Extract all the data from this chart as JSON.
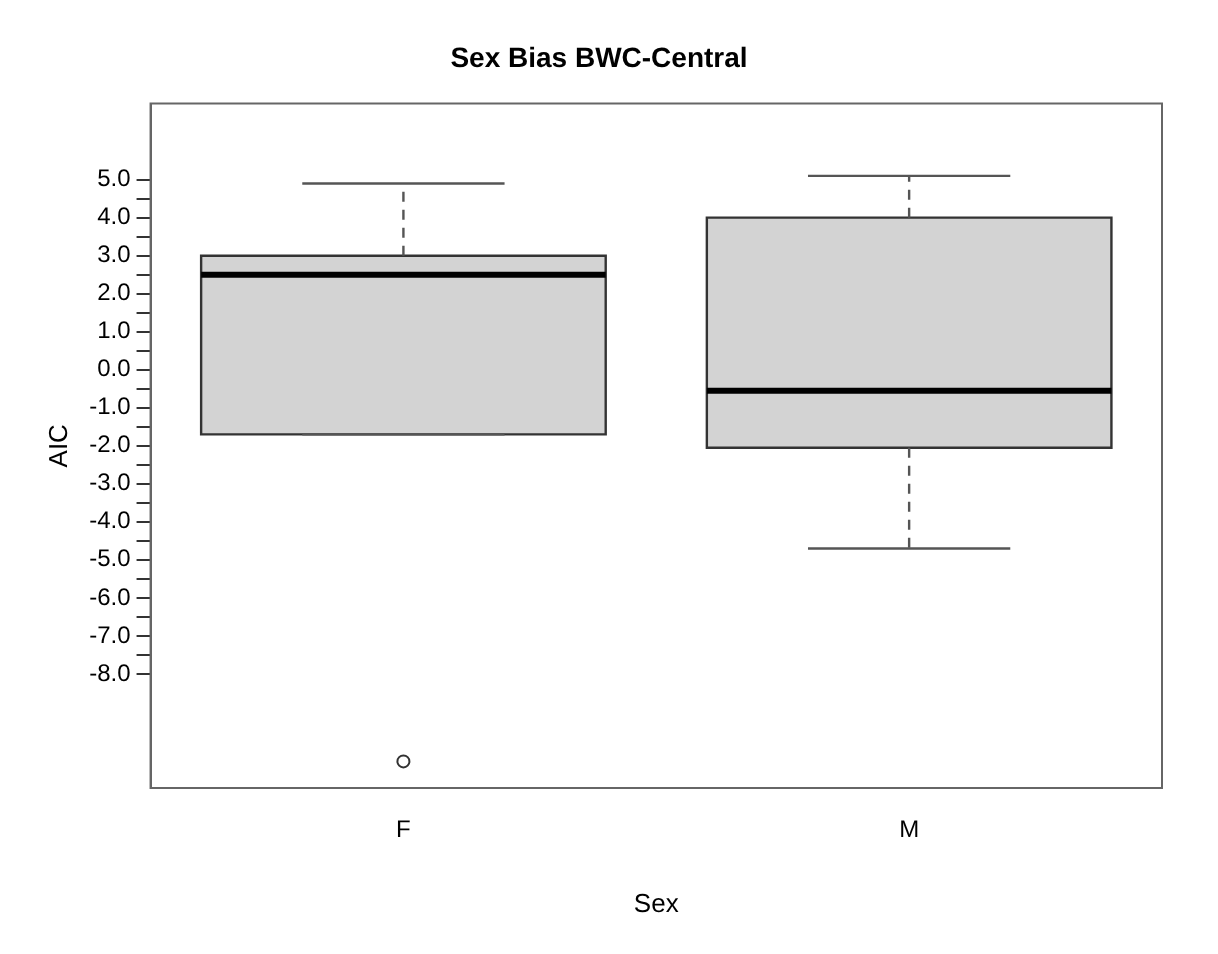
{
  "chart_data": {
    "type": "box",
    "title": "Sex Bias BWC-Central",
    "xlabel": "Sex",
    "ylabel": "AIC",
    "categories": [
      "F",
      "M"
    ],
    "boxes": [
      {
        "low": -1.7,
        "q1": -1.7,
        "median": 2.5,
        "q3": 3.0,
        "high": 4.9,
        "outliers": [
          -10.3
        ]
      },
      {
        "low": -4.7,
        "q1": -2.05,
        "median": -0.55,
        "q3": 4.0,
        "high": 5.1
      }
    ],
    "color": "#d3d3d3",
    "ylim": [
      -11,
      7
    ],
    "yticks": [
      {
        "value": 5,
        "label": "5.0"
      },
      {
        "value": 4.5,
        "label": null
      },
      {
        "value": 4,
        "label": "4.0"
      },
      {
        "value": 3.5,
        "label": null
      },
      {
        "value": 3,
        "label": "3.0"
      },
      {
        "value": 2.5,
        "label": null
      },
      {
        "value": 2,
        "label": "2.0"
      },
      {
        "value": 1.5,
        "label": null
      },
      {
        "value": 1,
        "label": "1.0"
      },
      {
        "value": 0.5,
        "label": null
      },
      {
        "value": 0,
        "label": "0.0"
      },
      {
        "value": -0.5,
        "label": null
      },
      {
        "value": -1,
        "label": "-1.0"
      },
      {
        "value": -1.5,
        "label": null
      },
      {
        "value": -2,
        "label": "-2.0"
      },
      {
        "value": -2.5,
        "label": null
      },
      {
        "value": -3,
        "label": "-3.0"
      },
      {
        "value": -3.5,
        "label": null
      },
      {
        "value": -4,
        "label": "-4.0"
      },
      {
        "value": -4.5,
        "label": null
      },
      {
        "value": -5,
        "label": "-5.0"
      },
      {
        "value": -5.5,
        "label": null
      },
      {
        "value": -6,
        "label": "-6.0"
      },
      {
        "value": -6.5,
        "label": null
      },
      {
        "value": -7,
        "label": "-7.0"
      },
      {
        "value": -7.5,
        "label": null
      },
      {
        "value": -8,
        "label": "-8.0"
      }
    ],
    "grid": false,
    "legend": false
  }
}
